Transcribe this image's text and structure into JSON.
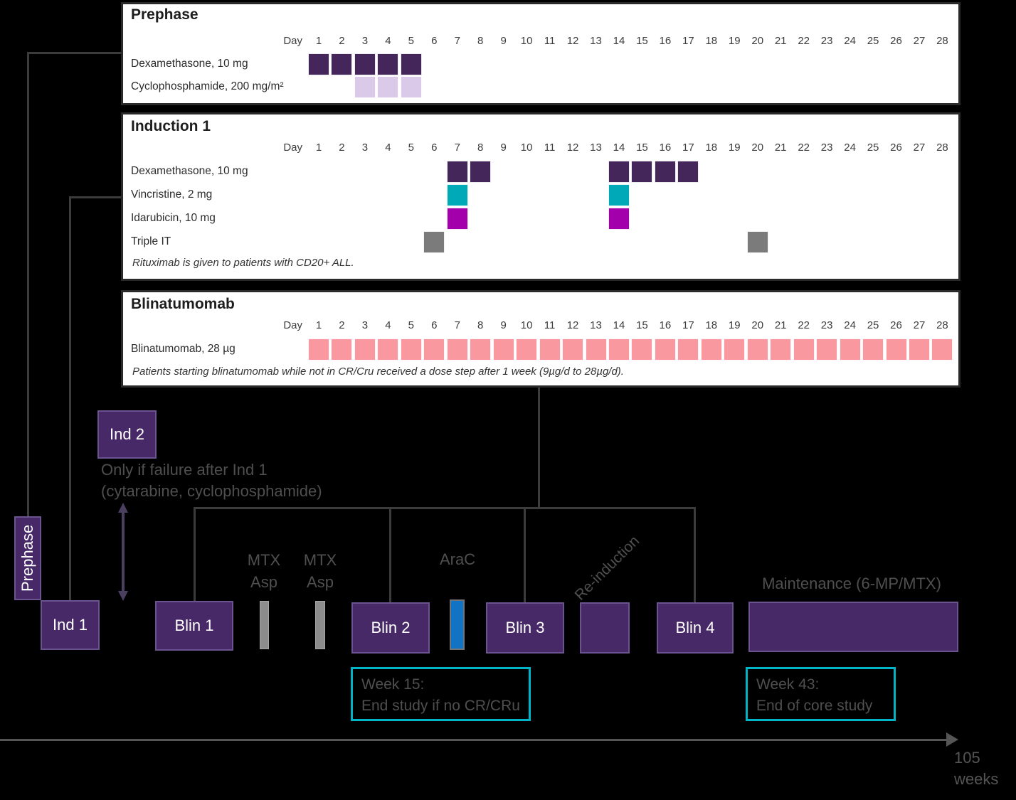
{
  "colors": {
    "background": "#000000",
    "panel_background": "#ffffff",
    "dark_purple": "#44265a",
    "light_purple": "#dbc9e9",
    "teal": "#00a9b8",
    "magenta": "#a300ab",
    "gray": "#7b7b7b",
    "pink": "#f9989e",
    "flow_box_purple": "#482968",
    "arac_blue": "#1173c4",
    "mtx_gray": "#8c8c8c",
    "callout_teal": "#00b4c8"
  },
  "panels": [
    {
      "title": "Prephase",
      "day_label": "Day",
      "day_count": 28,
      "rows": [
        {
          "label": "Dexamethasone, 10 mg",
          "color": "dark_purple",
          "day_ranges": [
            [
              1,
              5
            ]
          ]
        },
        {
          "label": "Cyclophosphamide, 200 mg/m²",
          "color": "light_purple",
          "day_ranges": [
            [
              3,
              5
            ]
          ]
        }
      ],
      "note": ""
    },
    {
      "title": "Induction 1",
      "day_label": "Day",
      "day_count": 28,
      "rows": [
        {
          "label": "Dexamethasone, 10 mg",
          "color": "dark_purple",
          "day_ranges": [
            [
              7,
              8
            ],
            [
              14,
              17
            ]
          ]
        },
        {
          "label": "Vincristine, 2 mg",
          "color": "teal",
          "day_ranges": [
            [
              7,
              7
            ],
            [
              14,
              14
            ]
          ]
        },
        {
          "label": "Idarubicin, 10 mg",
          "color": "magenta",
          "day_ranges": [
            [
              7,
              7
            ],
            [
              14,
              14
            ]
          ]
        },
        {
          "label": "Triple IT",
          "color": "gray",
          "day_ranges": [
            [
              6,
              6
            ],
            [
              20,
              20
            ]
          ]
        }
      ],
      "note": "Rituximab is given to patients with CD20+ ALL."
    },
    {
      "title": "Blinatumomab",
      "day_label": "Day",
      "day_count": 28,
      "rows": [
        {
          "label": "Blinatumomab, 28 µg",
          "color": "pink",
          "day_ranges": [
            [
              1,
              28
            ]
          ]
        }
      ],
      "note": "Patients starting blinatumomab while not in CR/Cru received a dose step after 1 week (9µg/d to 28µg/d)."
    }
  ],
  "flow": {
    "prephase_label": "Prephase",
    "ind1_label": "Ind 1",
    "ind2_label": "Ind 2",
    "ind2_note_line1": "Only if failure after Ind 1",
    "ind2_note_line2": "(cytarabine, cyclophosphamide)",
    "blin1_label": "Blin 1",
    "mtx_asp_1": {
      "line1": "MTX",
      "line2": "Asp"
    },
    "mtx_asp_2": {
      "line1": "MTX",
      "line2": "Asp"
    },
    "blin2_label": "Blin 2",
    "arac_label": "AraC",
    "blin3_label": "Blin 3",
    "reinduction_label": "Re-induction",
    "blin4_label": "Blin 4",
    "maintenance_label": "Maintenance (6-MP/MTX)",
    "week15_callout": {
      "line1": "Week 15:",
      "line2": "End study if no CR/CRu"
    },
    "week43_callout": {
      "line1": "Week 43:",
      "line2": "End of core study"
    },
    "timeline_end_line1": "105",
    "timeline_end_line2": "weeks"
  }
}
